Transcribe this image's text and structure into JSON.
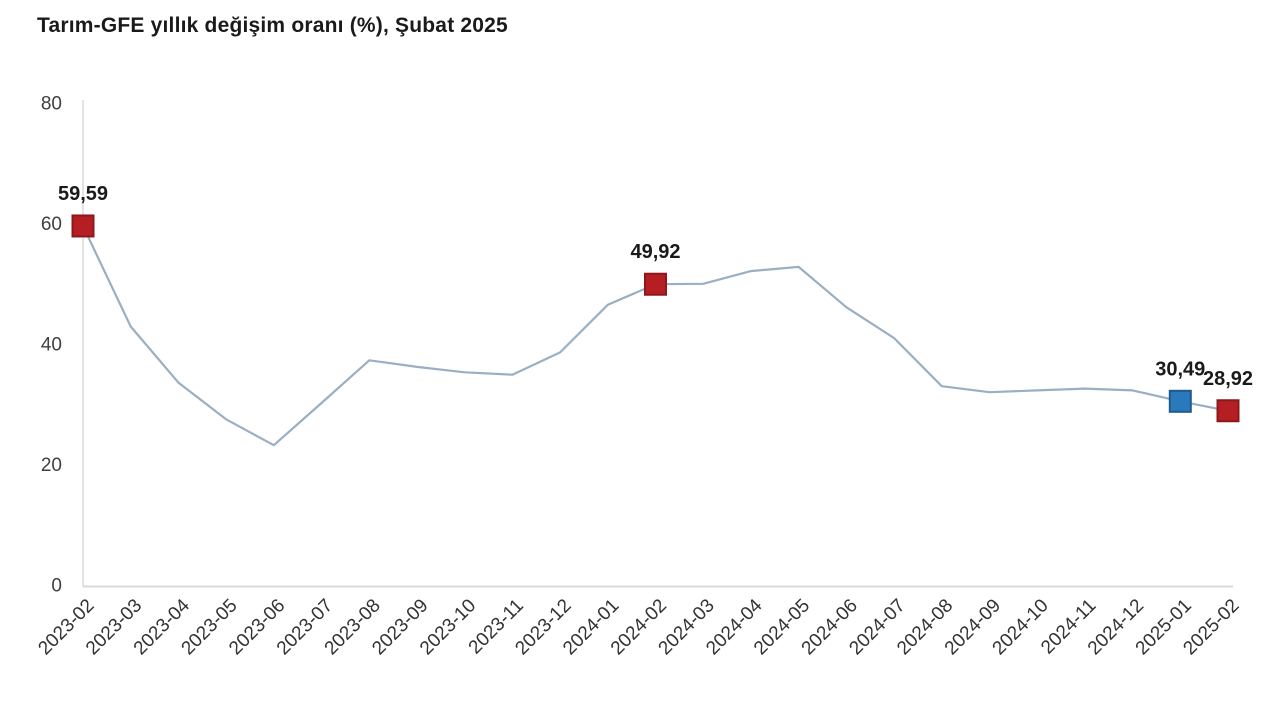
{
  "chart_data": {
    "type": "line",
    "title": "Tarım-GFE yıllık değişim oranı (%), Şubat 2025",
    "categories": [
      "2023-02",
      "2023-03",
      "2023-04",
      "2023-05",
      "2023-06",
      "2023-07",
      "2023-08",
      "2023-09",
      "2023-10",
      "2023-11",
      "2023-12",
      "2024-01",
      "2024-02",
      "2024-03",
      "2024-04",
      "2024-05",
      "2024-06",
      "2024-07",
      "2024-08",
      "2024-09",
      "2024-10",
      "2024-11",
      "2024-12",
      "2025-01",
      "2025-02"
    ],
    "values": [
      59.59,
      42.9,
      33.6,
      27.5,
      23.2,
      30.2,
      37.3,
      36.2,
      35.3,
      34.9,
      38.6,
      46.5,
      49.92,
      50.0,
      52.1,
      52.8,
      46.1,
      41.0,
      33.0,
      32.0,
      32.3,
      32.6,
      32.3,
      30.49,
      28.92
    ],
    "xlabel": "",
    "ylabel": "",
    "ylim": [
      0,
      80
    ],
    "yticks": [
      "0",
      "20",
      "40",
      "60",
      "80"
    ],
    "ytick_values": [
      0,
      20,
      40,
      60,
      80
    ],
    "grid": false,
    "legend_position": "none",
    "decimal_separator": ",",
    "annotated_points": [
      {
        "category": "2023-02",
        "value": 59.59,
        "label": "59,59",
        "marker": "red"
      },
      {
        "category": "2024-02",
        "value": 49.92,
        "label": "49,92",
        "marker": "red"
      },
      {
        "category": "2025-01",
        "value": 30.49,
        "label": "30,49",
        "marker": "blue"
      },
      {
        "category": "2025-02",
        "value": 28.92,
        "label": "28,92",
        "marker": "red"
      }
    ],
    "colors": {
      "line": "#9AAFC4",
      "axis": "#DADADA",
      "tick_label": "#404040",
      "title": "#1A1A1A",
      "data_label": "#1A1A1A",
      "marker_red_fill": "#B51F24",
      "marker_red_border": "#8C181C",
      "marker_blue_fill": "#2A79BD",
      "marker_blue_border": "#1E5A8E"
    }
  }
}
